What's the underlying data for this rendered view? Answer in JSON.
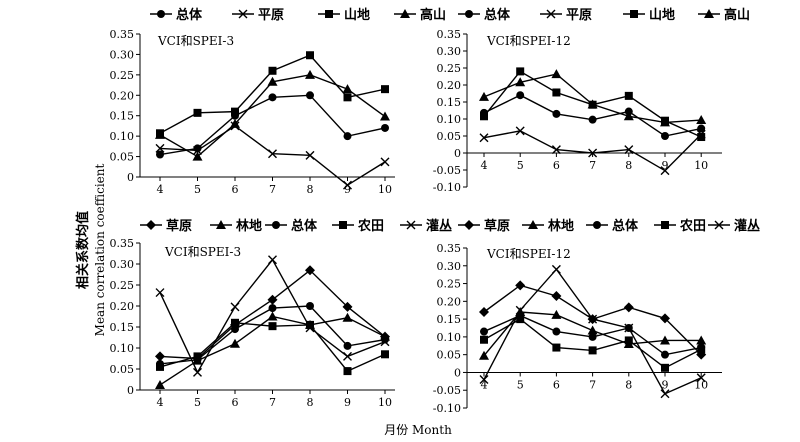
{
  "figure": {
    "ylabel_cn": "相关系数均值",
    "ylabel_en": "Mean correlation coefficient",
    "xlabel": "月份 Month"
  },
  "chart_data": [
    {
      "type": "line",
      "title": "VCI和SPEI-3",
      "categories": [
        "4",
        "5",
        "6",
        "7",
        "8",
        "9",
        "10"
      ],
      "ylim": [
        0,
        0.35
      ],
      "yticks": [
        "0",
        "0.05",
        "0.10",
        "0.15",
        "0.20",
        "0.25",
        "0.30",
        "0.35"
      ],
      "grid": false,
      "legend": "top",
      "series": [
        {
          "name": "总体",
          "marker": "circle",
          "values": [
            0.055,
            0.07,
            0.15,
            0.195,
            0.2,
            0.1,
            0.12
          ]
        },
        {
          "name": "平原",
          "marker": "x",
          "values": [
            0.07,
            0.065,
            0.125,
            0.057,
            0.053,
            -0.02,
            0.037
          ]
        },
        {
          "name": "山地",
          "marker": "square",
          "values": [
            0.107,
            0.157,
            0.16,
            0.26,
            0.298,
            0.195,
            0.215
          ]
        },
        {
          "name": "高山",
          "marker": "triangle",
          "values": [
            0.103,
            0.05,
            0.13,
            0.233,
            0.25,
            0.215,
            0.148
          ]
        }
      ]
    },
    {
      "type": "line",
      "title": "VCI和SPEI-12",
      "categories": [
        "4",
        "5",
        "6",
        "7",
        "8",
        "9",
        "10"
      ],
      "ylim": [
        -0.1,
        0.35
      ],
      "yticks": [
        "-0.10",
        "-0.05",
        "0",
        "0.05",
        "0.10",
        "0.15",
        "0.20",
        "0.25",
        "0.30",
        "0.35"
      ],
      "grid": false,
      "legend": "top",
      "series": [
        {
          "name": "总体",
          "marker": "circle",
          "values": [
            0.118,
            0.17,
            0.115,
            0.098,
            0.122,
            0.05,
            0.072
          ]
        },
        {
          "name": "平原",
          "marker": "x",
          "values": [
            0.045,
            0.065,
            0.01,
            0.0,
            0.01,
            -0.052,
            0.055
          ]
        },
        {
          "name": "山地",
          "marker": "square",
          "values": [
            0.108,
            0.24,
            0.178,
            0.142,
            0.168,
            0.095,
            0.047
          ]
        },
        {
          "name": "高山",
          "marker": "triangle",
          "values": [
            0.165,
            0.208,
            0.232,
            0.143,
            0.108,
            0.09,
            0.097
          ]
        }
      ]
    },
    {
      "type": "line",
      "title": "VCI和SPEI-3",
      "categories": [
        "4",
        "5",
        "6",
        "7",
        "8",
        "9",
        "10"
      ],
      "ylim": [
        0,
        0.35
      ],
      "yticks": [
        "0",
        "0.05",
        "0.10",
        "0.15",
        "0.20",
        "0.25",
        "0.30",
        "0.35"
      ],
      "grid": false,
      "legend": "top",
      "series": [
        {
          "name": "草原",
          "marker": "diamond",
          "values": [
            0.08,
            0.075,
            0.155,
            0.215,
            0.285,
            0.198,
            0.127
          ]
        },
        {
          "name": "林地",
          "marker": "triangle",
          "values": [
            0.012,
            0.07,
            0.11,
            0.175,
            0.155,
            0.172,
            0.127
          ]
        },
        {
          "name": "总体",
          "marker": "circle",
          "values": [
            0.062,
            0.072,
            0.145,
            0.195,
            0.2,
            0.105,
            0.12
          ]
        },
        {
          "name": "农田",
          "marker": "square",
          "values": [
            0.055,
            0.08,
            0.16,
            0.152,
            0.155,
            0.045,
            0.085
          ]
        },
        {
          "name": "灌丛",
          "marker": "x",
          "values": [
            0.232,
            0.042,
            0.198,
            0.31,
            0.148,
            0.08,
            0.115
          ]
        }
      ]
    },
    {
      "type": "line",
      "title": "VCI和SPEI-12",
      "categories": [
        "4",
        "5",
        "6",
        "7",
        "8",
        "9",
        "10"
      ],
      "ylim": [
        -0.1,
        0.35
      ],
      "yticks": [
        "-0.10",
        "-0.05",
        "0",
        "0.05",
        "0.10",
        "0.15",
        "0.20",
        "0.25",
        "0.30",
        "0.35"
      ],
      "grid": false,
      "legend": "top",
      "series": [
        {
          "name": "草原",
          "marker": "diamond",
          "values": [
            0.17,
            0.245,
            0.215,
            0.15,
            0.183,
            0.152,
            0.05
          ]
        },
        {
          "name": "林地",
          "marker": "triangle",
          "values": [
            0.047,
            0.17,
            0.162,
            0.118,
            0.08,
            0.09,
            0.09
          ]
        },
        {
          "name": "总体",
          "marker": "circle",
          "values": [
            0.115,
            0.16,
            0.115,
            0.1,
            0.125,
            0.05,
            0.07
          ]
        },
        {
          "name": "农田",
          "marker": "square",
          "values": [
            0.092,
            0.15,
            0.07,
            0.062,
            0.09,
            0.013,
            0.065
          ]
        },
        {
          "name": "灌丛",
          "marker": "x",
          "values": [
            -0.02,
            0.175,
            0.29,
            0.15,
            0.125,
            -0.06,
            -0.015
          ]
        }
      ]
    }
  ]
}
